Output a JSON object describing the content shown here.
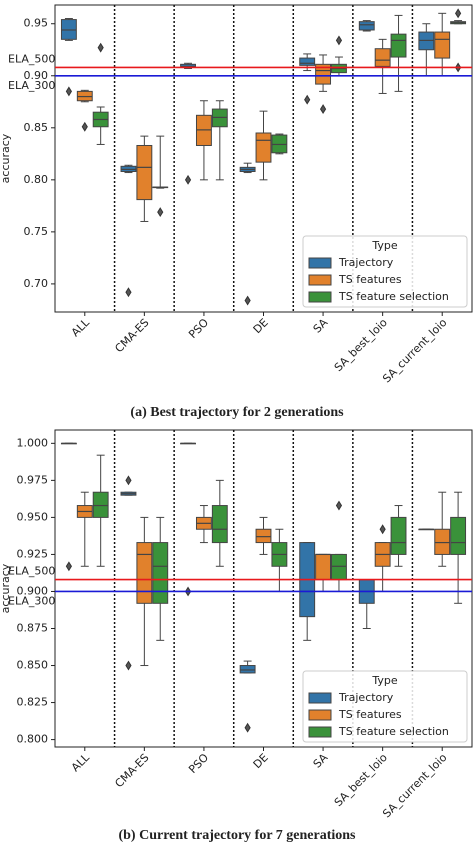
{
  "chart_data": [
    {
      "type": "box",
      "caption": "(a) Best trajectory for 2 generations",
      "y_label": "accuracy",
      "categories": [
        "ALL",
        "CMA-ES",
        "PSO",
        "DE",
        "SA",
        "SA_best_loio",
        "SA_current_loio"
      ],
      "ylim": [
        0.673,
        0.968
      ],
      "yticks": [
        {
          "value": 0.7,
          "label": "0.70"
        },
        0.75,
        {
          "value": 0.8,
          "label": "0.80"
        },
        0.85,
        {
          "value": 0.9,
          "label": "0.90"
        },
        0.95
      ],
      "legend_title": "Type",
      "legend": "lower right",
      "hlines": [
        {
          "label": "ELA_500",
          "value": 0.908,
          "color": "#e8191c"
        },
        {
          "label": "ELA_300",
          "value": 0.9,
          "color": "#1a1ad6"
        }
      ],
      "series": [
        {
          "name": "Trajectory",
          "color": "#3274a8",
          "values": [
            {
              "whislo": 0.934,
              "q1": 0.935,
              "med": 0.944,
              "q3": 0.954,
              "whishi": 0.955,
              "fliers": [
                0.885
              ]
            },
            {
              "whislo": 0.807,
              "q1": 0.808,
              "med": 0.81,
              "q3": 0.813,
              "whishi": 0.814,
              "fliers": [
                0.692
              ]
            },
            {
              "whislo": 0.907,
              "q1": 0.908,
              "med": 0.909,
              "q3": 0.911,
              "whishi": 0.912,
              "fliers": [
                0.8
              ]
            },
            {
              "whislo": 0.807,
              "q1": 0.808,
              "med": 0.81,
              "q3": 0.812,
              "whishi": 0.816,
              "fliers": [
                0.684
              ]
            },
            {
              "whislo": 0.905,
              "q1": 0.91,
              "med": 0.912,
              "q3": 0.917,
              "whishi": 0.921,
              "fliers": [
                0.877
              ]
            },
            {
              "whislo": 0.943,
              "q1": 0.944,
              "med": 0.949,
              "q3": 0.952,
              "whishi": 0.953,
              "fliers": []
            },
            {
              "whislo": 0.9,
              "q1": 0.925,
              "med": 0.934,
              "q3": 0.942,
              "whishi": 0.95,
              "fliers": []
            }
          ]
        },
        {
          "name": "TS features",
          "color": "#e1812c",
          "values": [
            {
              "whislo": 0.875,
              "q1": 0.876,
              "med": 0.88,
              "q3": 0.885,
              "whishi": 0.886,
              "fliers": [
                0.851
              ]
            },
            {
              "whislo": 0.76,
              "q1": 0.781,
              "med": 0.812,
              "q3": 0.833,
              "whishi": 0.842,
              "fliers": []
            },
            {
              "whislo": 0.8,
              "q1": 0.833,
              "med": 0.848,
              "q3": 0.862,
              "whishi": 0.876,
              "fliers": []
            },
            {
              "whislo": 0.8,
              "q1": 0.817,
              "med": 0.838,
              "q3": 0.845,
              "whishi": 0.866,
              "fliers": []
            },
            {
              "whislo": 0.885,
              "q1": 0.892,
              "med": 0.905,
              "q3": 0.911,
              "whishi": 0.92,
              "fliers": [
                0.868
              ]
            },
            {
              "whislo": 0.883,
              "q1": 0.909,
              "med": 0.915,
              "q3": 0.926,
              "whishi": 0.935,
              "fliers": []
            },
            {
              "whislo": 0.9,
              "q1": 0.917,
              "med": 0.935,
              "q3": 0.942,
              "whishi": 0.96,
              "fliers": []
            }
          ]
        },
        {
          "name": "TS feature selection",
          "color": "#3a923a",
          "values": [
            {
              "whislo": 0.834,
              "q1": 0.851,
              "med": 0.858,
              "q3": 0.865,
              "whishi": 0.87,
              "fliers": [
                0.927
              ]
            },
            {
              "whislo": 0.792,
              "q1": 0.793,
              "med": 0.793,
              "q3": 0.793,
              "whishi": 0.842,
              "fliers": [
                0.769
              ]
            },
            {
              "whislo": 0.8,
              "q1": 0.851,
              "med": 0.86,
              "q3": 0.868,
              "whishi": 0.876,
              "fliers": []
            },
            {
              "whislo": 0.825,
              "q1": 0.826,
              "med": 0.834,
              "q3": 0.843,
              "whishi": 0.844,
              "fliers": []
            },
            {
              "whislo": 0.9,
              "q1": 0.903,
              "med": 0.907,
              "q3": 0.911,
              "whishi": 0.918,
              "fliers": [
                0.934
              ]
            },
            {
              "whislo": 0.885,
              "q1": 0.918,
              "med": 0.934,
              "q3": 0.94,
              "whishi": 0.958,
              "fliers": []
            },
            {
              "whislo": 0.95,
              "q1": 0.95,
              "med": 0.951,
              "q3": 0.952,
              "whishi": 0.953,
              "fliers": [
                0.96,
                0.908
              ]
            }
          ]
        }
      ]
    },
    {
      "type": "box",
      "caption": "(b) Current trajectory for 7 generations",
      "y_label": "accuracy",
      "categories": [
        "ALL",
        "CMA-ES",
        "PSO",
        "DE",
        "SA",
        "SA_best_loio",
        "SA_current_loio"
      ],
      "ylim": [
        0.795,
        1.009
      ],
      "yticks": [
        {
          "value": 0.8,
          "label": "0.800"
        },
        0.825,
        {
          "value": 0.85,
          "label": "0.850"
        },
        0.875,
        {
          "value": 0.9,
          "label": "0.900"
        },
        0.925,
        {
          "value": 0.95,
          "label": "0.950"
        },
        0.975,
        {
          "value": 1.0,
          "label": "1.000"
        }
      ],
      "legend_title": "Type",
      "legend": "lower right",
      "hlines": [
        {
          "label": "ELA_500",
          "value": 0.908,
          "color": "#e8191c"
        },
        {
          "label": "ELA_300",
          "value": 0.9,
          "color": "#1a1ad6"
        }
      ],
      "series": [
        {
          "name": "Trajectory",
          "color": "#3274a8",
          "values": [
            {
              "whislo": 1.0,
              "q1": 1.0,
              "med": 1.0,
              "q3": 1.0,
              "whishi": 1.0,
              "fliers": [
                0.917
              ]
            },
            {
              "whislo": 0.965,
              "q1": 0.965,
              "med": 0.966,
              "q3": 0.967,
              "whishi": 0.967,
              "fliers": [
                0.975,
                0.85
              ]
            },
            {
              "whislo": 1.0,
              "q1": 1.0,
              "med": 1.0,
              "q3": 1.0,
              "whishi": 1.0,
              "fliers": [
                0.9
              ]
            },
            {
              "whislo": 0.845,
              "q1": 0.845,
              "med": 0.847,
              "q3": 0.85,
              "whishi": 0.853,
              "fliers": [
                0.808
              ]
            },
            {
              "whislo": 0.867,
              "q1": 0.883,
              "med": 0.9,
              "q3": 0.933,
              "whishi": 0.933,
              "fliers": []
            },
            {
              "whislo": 0.875,
              "q1": 0.892,
              "med": 0.9,
              "q3": 0.908,
              "whishi": 0.908,
              "fliers": []
            },
            {
              "whislo": 0.942,
              "q1": 0.942,
              "med": 0.942,
              "q3": 0.942,
              "whishi": 0.942,
              "fliers": []
            }
          ]
        },
        {
          "name": "TS features",
          "color": "#e1812c",
          "values": [
            {
              "whislo": 0.917,
              "q1": 0.95,
              "med": 0.954,
              "q3": 0.958,
              "whishi": 0.967,
              "fliers": []
            },
            {
              "whislo": 0.85,
              "q1": 0.892,
              "med": 0.925,
              "q3": 0.933,
              "whishi": 0.95,
              "fliers": []
            },
            {
              "whislo": 0.933,
              "q1": 0.942,
              "med": 0.946,
              "q3": 0.95,
              "whishi": 0.958,
              "fliers": []
            },
            {
              "whislo": 0.925,
              "q1": 0.933,
              "med": 0.937,
              "q3": 0.942,
              "whishi": 0.95,
              "fliers": []
            },
            {
              "whislo": 0.9,
              "q1": 0.908,
              "med": 0.925,
              "q3": 0.925,
              "whishi": 0.925,
              "fliers": []
            },
            {
              "whislo": 0.9,
              "q1": 0.917,
              "med": 0.925,
              "q3": 0.933,
              "whishi": 0.933,
              "fliers": [
                0.942
              ]
            },
            {
              "whislo": 0.917,
              "q1": 0.925,
              "med": 0.933,
              "q3": 0.942,
              "whishi": 0.967,
              "fliers": []
            }
          ]
        },
        {
          "name": "TS feature selection",
          "color": "#3a923a",
          "values": [
            {
              "whislo": 0.917,
              "q1": 0.95,
              "med": 0.958,
              "q3": 0.967,
              "whishi": 0.992,
              "fliers": []
            },
            {
              "whislo": 0.867,
              "q1": 0.892,
              "med": 0.917,
              "q3": 0.933,
              "whishi": 0.95,
              "fliers": []
            },
            {
              "whislo": 0.917,
              "q1": 0.933,
              "med": 0.942,
              "q3": 0.958,
              "whishi": 0.975,
              "fliers": []
            },
            {
              "whislo": 0.9,
              "q1": 0.917,
              "med": 0.925,
              "q3": 0.933,
              "whishi": 0.942,
              "fliers": []
            },
            {
              "whislo": 0.9,
              "q1": 0.908,
              "med": 0.917,
              "q3": 0.925,
              "whishi": 0.925,
              "fliers": [
                0.958
              ]
            },
            {
              "whislo": 0.917,
              "q1": 0.925,
              "med": 0.933,
              "q3": 0.95,
              "whishi": 0.958,
              "fliers": []
            },
            {
              "whislo": 0.892,
              "q1": 0.925,
              "med": 0.933,
              "q3": 0.95,
              "whishi": 0.967,
              "fliers": []
            }
          ]
        }
      ]
    }
  ]
}
